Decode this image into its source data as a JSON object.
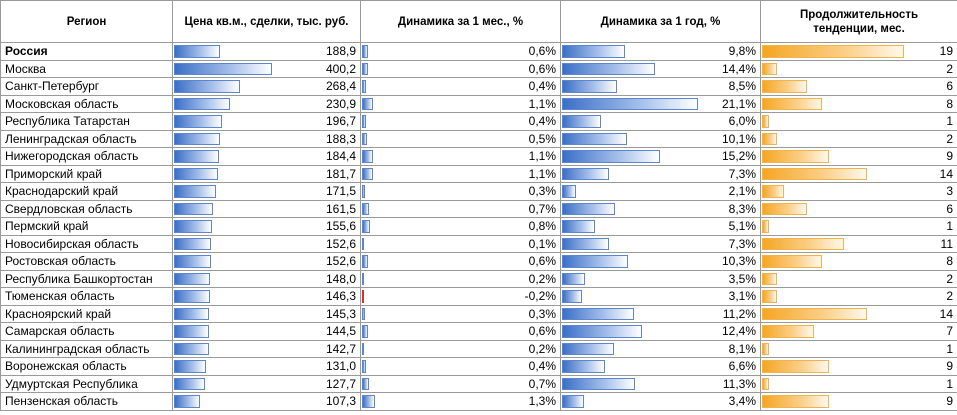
{
  "headers": {
    "region": "Регион",
    "price": "Цена кв.м., сделки, тыс. руб.",
    "month": "Динамика за 1 мес., %",
    "year": "Динамика за 1 год, %",
    "duration_line1": "Продолжительность",
    "duration_line2": "тенденции, мес."
  },
  "colors": {
    "bar_blue": "#3b6fc6",
    "bar_orange": "#f5a623",
    "bar_negative": "#d9302f"
  },
  "rows": [
    {
      "region": "Россия",
      "price": "188,9",
      "price_v": 188.9,
      "month": "0,6%",
      "month_v": 0.6,
      "year": "9,8%",
      "year_v": 9.8,
      "dur": "19",
      "dur_v": 19
    },
    {
      "region": "Москва",
      "price": "400,2",
      "price_v": 400.2,
      "month": "0,6%",
      "month_v": 0.6,
      "year": "14,4%",
      "year_v": 14.4,
      "dur": "2",
      "dur_v": 2
    },
    {
      "region": "Санкт-Петербург",
      "price": "268,4",
      "price_v": 268.4,
      "month": "0,4%",
      "month_v": 0.4,
      "year": "8,5%",
      "year_v": 8.5,
      "dur": "6",
      "dur_v": 6
    },
    {
      "region": "Московская область",
      "price": "230,9",
      "price_v": 230.9,
      "month": "1,1%",
      "month_v": 1.1,
      "year": "21,1%",
      "year_v": 21.1,
      "dur": "8",
      "dur_v": 8
    },
    {
      "region": "Республика Татарстан",
      "price": "196,7",
      "price_v": 196.7,
      "month": "0,4%",
      "month_v": 0.4,
      "year": "6,0%",
      "year_v": 6.0,
      "dur": "1",
      "dur_v": 1
    },
    {
      "region": "Ленинградская область",
      "price": "188,3",
      "price_v": 188.3,
      "month": "0,5%",
      "month_v": 0.5,
      "year": "10,1%",
      "year_v": 10.1,
      "dur": "2",
      "dur_v": 2
    },
    {
      "region": "Нижегородская область",
      "price": "184,4",
      "price_v": 184.4,
      "month": "1,1%",
      "month_v": 1.1,
      "year": "15,2%",
      "year_v": 15.2,
      "dur": "9",
      "dur_v": 9
    },
    {
      "region": "Приморский край",
      "price": "181,7",
      "price_v": 181.7,
      "month": "1,1%",
      "month_v": 1.1,
      "year": "7,3%",
      "year_v": 7.3,
      "dur": "14",
      "dur_v": 14
    },
    {
      "region": "Краснодарский край",
      "price": "171,5",
      "price_v": 171.5,
      "month": "0,3%",
      "month_v": 0.3,
      "year": "2,1%",
      "year_v": 2.1,
      "dur": "3",
      "dur_v": 3
    },
    {
      "region": "Свердловская область",
      "price": "161,5",
      "price_v": 161.5,
      "month": "0,7%",
      "month_v": 0.7,
      "year": "8,3%",
      "year_v": 8.3,
      "dur": "6",
      "dur_v": 6
    },
    {
      "region": "Пермский край",
      "price": "155,6",
      "price_v": 155.6,
      "month": "0,8%",
      "month_v": 0.8,
      "year": "5,1%",
      "year_v": 5.1,
      "dur": "1",
      "dur_v": 1
    },
    {
      "region": "Новосибирская область",
      "price": "152,6",
      "price_v": 152.6,
      "month": "0,1%",
      "month_v": 0.1,
      "year": "7,3%",
      "year_v": 7.3,
      "dur": "11",
      "dur_v": 11
    },
    {
      "region": "Ростовская область",
      "price": "152,6",
      "price_v": 152.6,
      "month": "0,6%",
      "month_v": 0.6,
      "year": "10,3%",
      "year_v": 10.3,
      "dur": "8",
      "dur_v": 8
    },
    {
      "region": "Республика Башкортостан",
      "price": "148,0",
      "price_v": 148.0,
      "month": "0,2%",
      "month_v": 0.2,
      "year": "3,5%",
      "year_v": 3.5,
      "dur": "2",
      "dur_v": 2
    },
    {
      "region": "Тюменская область",
      "price": "146,3",
      "price_v": 146.3,
      "month": "-0,2%",
      "month_v": -0.2,
      "year": "3,1%",
      "year_v": 3.1,
      "dur": "2",
      "dur_v": 2
    },
    {
      "region": "Красноярский край",
      "price": "145,3",
      "price_v": 145.3,
      "month": "0,3%",
      "month_v": 0.3,
      "year": "11,2%",
      "year_v": 11.2,
      "dur": "14",
      "dur_v": 14
    },
    {
      "region": "Самарская область",
      "price": "144,5",
      "price_v": 144.5,
      "month": "0,6%",
      "month_v": 0.6,
      "year": "12,4%",
      "year_v": 12.4,
      "dur": "7",
      "dur_v": 7
    },
    {
      "region": "Калининградская область",
      "price": "142,7",
      "price_v": 142.7,
      "month": "0,2%",
      "month_v": 0.2,
      "year": "8,1%",
      "year_v": 8.1,
      "dur": "1",
      "dur_v": 1
    },
    {
      "region": "Воронежская область",
      "price": "131,0",
      "price_v": 131.0,
      "month": "0,4%",
      "month_v": 0.4,
      "year": "6,6%",
      "year_v": 6.6,
      "dur": "9",
      "dur_v": 9
    },
    {
      "region": "Удмуртская Республика",
      "price": "127,7",
      "price_v": 127.7,
      "month": "0,7%",
      "month_v": 0.7,
      "year": "11,3%",
      "year_v": 11.3,
      "dur": "1",
      "dur_v": 1
    },
    {
      "region": "Пензенская область",
      "price": "107,3",
      "price_v": 107.3,
      "month": "1,3%",
      "month_v": 1.3,
      "year": "3,4%",
      "year_v": 3.4,
      "dur": "9",
      "dur_v": 9
    }
  ]
}
